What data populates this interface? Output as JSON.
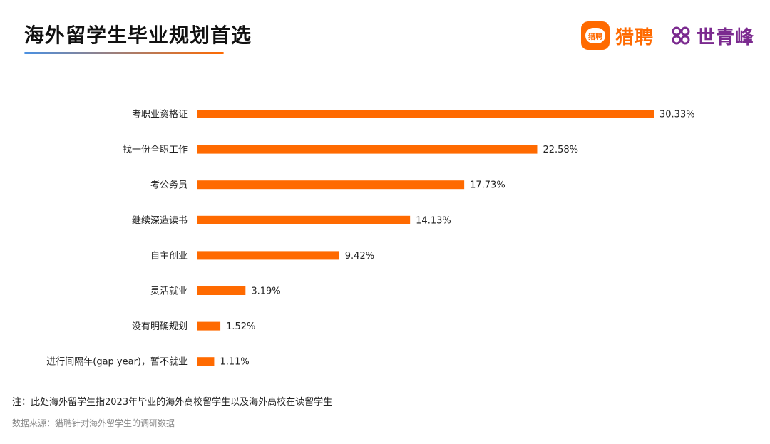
{
  "header": {
    "title": "海外留学生毕业规划首选"
  },
  "brand": {
    "icon_text": "猎聘",
    "name": "猎聘",
    "partner_name": "世青峰",
    "accent_color": "#ff6a00",
    "partner_color": "#7b2a8f"
  },
  "chart_data": {
    "type": "bar",
    "orientation": "horizontal",
    "categories": [
      "考职业资格证",
      "找一份全职工作",
      "考公务员",
      "继续深造读书",
      "自主创业",
      "灵活就业",
      "没有明确规划",
      "进行间隔年(gap year)，暂不就业"
    ],
    "values": [
      30.33,
      22.58,
      17.73,
      14.13,
      9.42,
      3.19,
      1.52,
      1.11
    ],
    "value_labels": [
      "30.33%",
      "22.58%",
      "17.73%",
      "14.13%",
      "9.42%",
      "3.19%",
      "1.52%",
      "1.11%"
    ],
    "unit": "%",
    "bar_color": "#ff6a00",
    "xlim": [
      0,
      30.33
    ],
    "grid": false,
    "legend": "none"
  },
  "footer": {
    "note": "注：此处海外留学生指2023年毕业的海外高校留学生以及海外高校在读留学生",
    "source": "数据来源：猎聘针对海外留学生的调研数据"
  }
}
